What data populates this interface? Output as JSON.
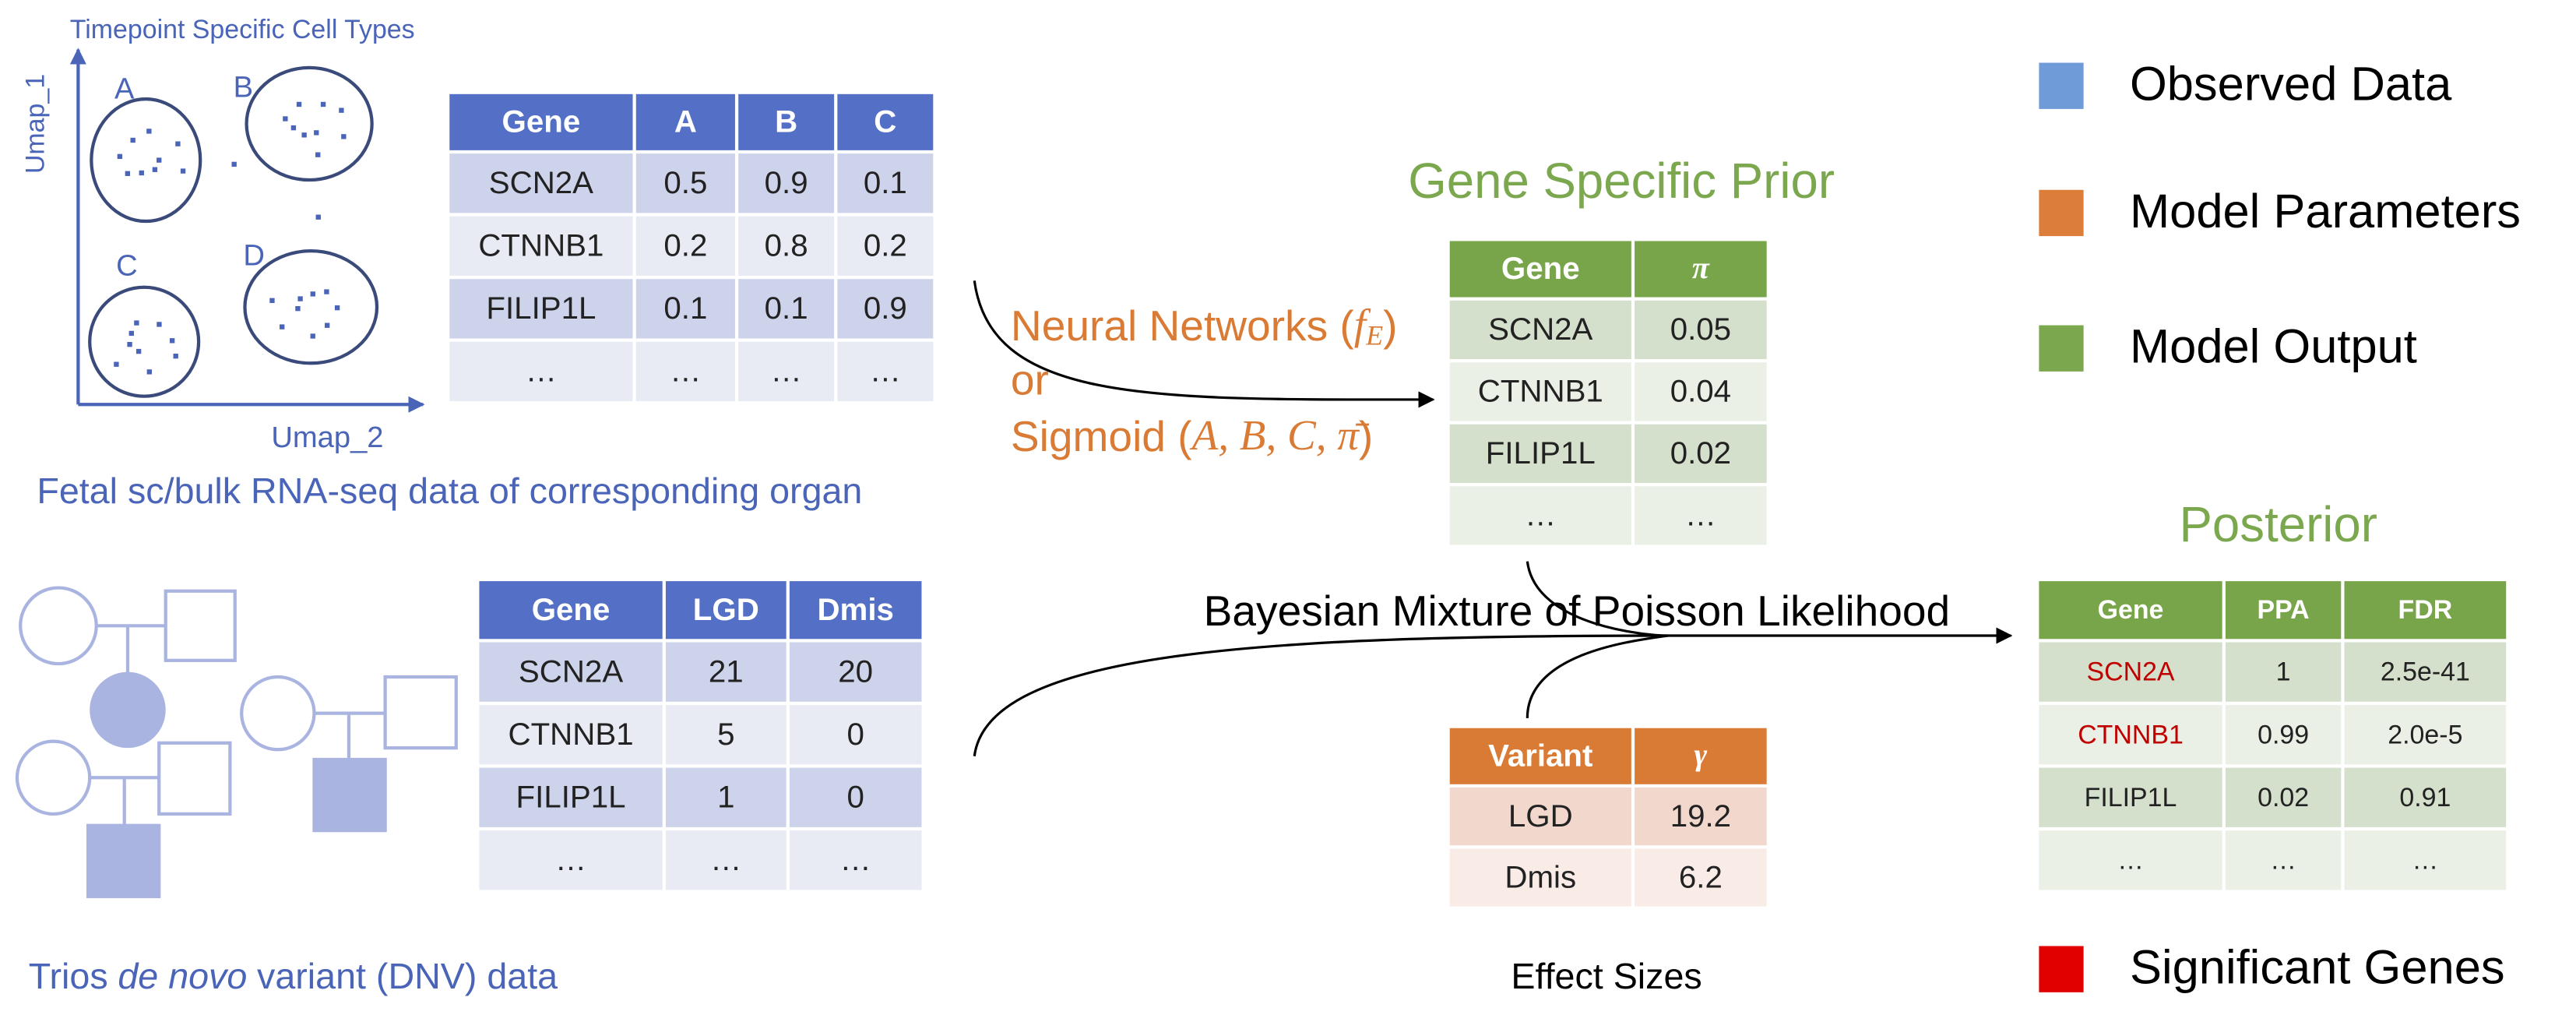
{
  "umap": {
    "title": "Timepoint Specific Cell Types",
    "y_label": "Umap_1",
    "x_label": "Umap_2",
    "clusters": [
      "A",
      "B",
      "C",
      "D"
    ],
    "caption": "Fetal sc/bulk RNA-seq data of corresponding organ"
  },
  "expression_table": {
    "header": [
      "Gene",
      "A",
      "B",
      "C"
    ],
    "rows": [
      [
        "SCN2A",
        "0.5",
        "0.9",
        "0.1"
      ],
      [
        "CTNNB1",
        "0.2",
        "0.8",
        "0.2"
      ],
      [
        "FILIP1L",
        "0.1",
        "0.1",
        "0.9"
      ],
      [
        "…",
        "…",
        "…",
        "…"
      ]
    ]
  },
  "dnv_table": {
    "header": [
      "Gene",
      "LGD",
      "Dmis"
    ],
    "rows": [
      [
        "SCN2A",
        "21",
        "20"
      ],
      [
        "CTNNB1",
        "5",
        "0"
      ],
      [
        "FILIP1L",
        "1",
        "0"
      ],
      [
        "…",
        "…",
        "…"
      ]
    ]
  },
  "dnv_caption": [
    "Trios",
    "de novo",
    "variant (DNV) data"
  ],
  "method_label": {
    "line1": [
      "Neural Networks (",
      "f",
      "E",
      ")"
    ],
    "line2": "or",
    "line3": [
      "Sigmoid (",
      "A, B, C, π̄",
      ")"
    ]
  },
  "prior": {
    "title": "Gene Specific Prior",
    "header": [
      "Gene",
      "π"
    ],
    "rows": [
      [
        "SCN2A",
        "0.05"
      ],
      [
        "CTNNB1",
        "0.04"
      ],
      [
        "FILIP1L",
        "0.02"
      ],
      [
        "…",
        "…"
      ]
    ]
  },
  "likelihood_label": "Bayesian Mixture of Poisson Likelihood",
  "effect_sizes": {
    "caption": "Effect Sizes",
    "header": [
      "Variant",
      "γ"
    ],
    "rows": [
      [
        "LGD",
        "19.2"
      ],
      [
        "Dmis",
        "6.2"
      ]
    ]
  },
  "posterior": {
    "title": "Posterior",
    "header": [
      "Gene",
      "PPA",
      "FDR"
    ],
    "rows": [
      [
        "SCN2A",
        "1",
        "2.5e-41"
      ],
      [
        "CTNNB1",
        "0.99",
        "2.0e-5"
      ],
      [
        "FILIP1L",
        "0.02",
        "0.91"
      ],
      [
        "…",
        "…",
        "…"
      ]
    ],
    "name_colors": [
      "#c00000",
      "#c00000",
      null,
      null
    ]
  },
  "legend": [
    {
      "label": "Observed Data",
      "color": "#6f9bd8"
    },
    {
      "label": "Model Parameters",
      "color": "#dc7d3a"
    },
    {
      "label": "Model Output",
      "color": "#7ba84e"
    },
    {
      "label": "Significant Genes",
      "color": "#e00000"
    }
  ]
}
